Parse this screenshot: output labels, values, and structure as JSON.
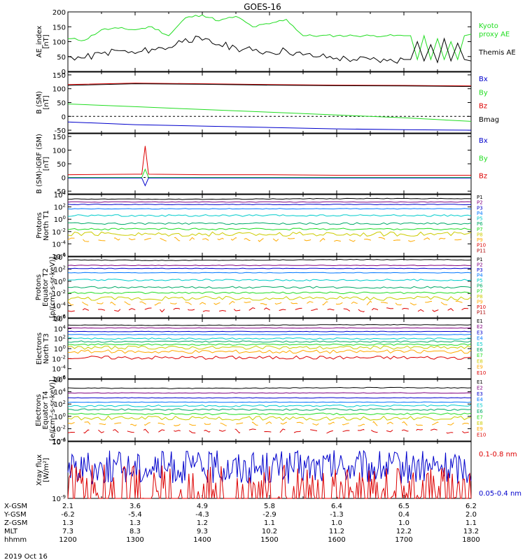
{
  "title": "GOES-16",
  "date_label": "2019 Oct 16",
  "footer": {
    "rows": [
      {
        "label": "X-GSM",
        "values": [
          "2.1",
          "3.6",
          "4.9",
          "5.8",
          "6.4",
          "6.5",
          "6.2"
        ]
      },
      {
        "label": "Y-GSM",
        "values": [
          "-6.2",
          "-5.4",
          "-4.3",
          "-2.9",
          "-1.3",
          "0.4",
          "2.0"
        ]
      },
      {
        "label": "Z-GSM",
        "values": [
          "1.3",
          "1.3",
          "1.2",
          "1.1",
          "1.0",
          "1.0",
          "1.1"
        ]
      },
      {
        "label": "MLT",
        "values": [
          "7.3",
          "8.3",
          "9.3",
          "10.2",
          "11.2",
          "12.2",
          "13.2"
        ]
      },
      {
        "label": "hhmm",
        "values": [
          "1200",
          "1300",
          "1400",
          "1500",
          "1600",
          "1700",
          "1800"
        ]
      }
    ]
  },
  "colors": {
    "black": "#000000",
    "green": "#22dd22",
    "blue": "#0000cc",
    "red": "#dd0000"
  },
  "chart_data": [
    {
      "type": "line",
      "ylabel_lines": [
        "AE_index",
        "[nT]"
      ],
      "ylim": [
        0,
        200
      ],
      "yticks": [
        0,
        50,
        100,
        150,
        200
      ],
      "ytick_labels": [
        "0",
        "50",
        "100",
        "150",
        "200"
      ],
      "x": [
        12.0,
        12.25,
        12.5,
        12.75,
        13.0,
        13.25,
        13.5,
        13.75,
        14.0,
        14.25,
        14.5,
        14.75,
        15.0,
        15.25,
        15.5,
        15.75,
        16.0,
        16.25,
        16.5,
        16.75,
        17.0,
        17.1,
        17.2,
        17.3,
        17.4,
        17.5,
        17.6,
        17.7,
        17.8,
        17.9,
        18.0
      ],
      "series": [
        {
          "name": "Kyoto proxy AE",
          "color": "#22dd22",
          "values": [
            110,
            105,
            140,
            145,
            140,
            150,
            120,
            180,
            190,
            170,
            185,
            150,
            160,
            175,
            120,
            120,
            120,
            120,
            120,
            120,
            120,
            120,
            40,
            120,
            40,
            110,
            40,
            100,
            40,
            120,
            125
          ]
        },
        {
          "name": "Themis AE",
          "color": "#000000",
          "values": [
            50,
            45,
            60,
            70,
            60,
            75,
            80,
            110,
            105,
            90,
            80,
            70,
            65,
            70,
            55,
            50,
            45,
            40,
            40,
            35,
            40,
            40,
            100,
            35,
            90,
            30,
            110,
            35,
            95,
            40,
            35
          ]
        }
      ],
      "legend": [
        {
          "text": "Kyoto",
          "color": "#22dd22"
        },
        {
          "text": "proxy AE",
          "color": "#22dd22"
        },
        {
          "text": "Themis AE",
          "color": "#000000"
        }
      ]
    },
    {
      "type": "line",
      "ylabel_lines": [
        "B (SM)",
        "[nT]"
      ],
      "ylim": [
        -60,
        160
      ],
      "yticks": [
        -50,
        0,
        50,
        100,
        150
      ],
      "ytick_labels": [
        "-50",
        "0",
        "50",
        "100",
        "150"
      ],
      "x": [
        12.0,
        13.0,
        14.0,
        15.0,
        16.0,
        17.0,
        18.0
      ],
      "series": [
        {
          "name": "Bz",
          "color": "#dd0000",
          "values": [
            115,
            120,
            118,
            115,
            113,
            112,
            110
          ]
        },
        {
          "name": "Bmag",
          "color": "#000000",
          "values": [
            112,
            118,
            116,
            113,
            111,
            110,
            108
          ]
        },
        {
          "name": "By",
          "color": "#22dd22",
          "values": [
            45,
            35,
            25,
            15,
            5,
            -5,
            -18
          ]
        },
        {
          "name": "Bx",
          "color": "#0000cc",
          "values": [
            -20,
            -30,
            -35,
            -40,
            -45,
            -48,
            -50
          ]
        }
      ],
      "legend": [
        {
          "text": "Bx",
          "color": "#0000cc"
        },
        {
          "text": "By",
          "color": "#22dd22"
        },
        {
          "text": "Bz",
          "color": "#dd0000"
        },
        {
          "text": "Bmag",
          "color": "#000000"
        }
      ]
    },
    {
      "type": "line",
      "ylabel_lines": [
        "B (SM)-IGRF (SM)",
        "[nT]"
      ],
      "ylim": [
        -60,
        160
      ],
      "yticks": [
        -50,
        0,
        50,
        100,
        150
      ],
      "ytick_labels": [
        "-50",
        "0",
        "50",
        "100",
        "150"
      ],
      "x": [
        12.0,
        13.0,
        13.1,
        13.15,
        13.2,
        14.0,
        15.0,
        16.0,
        17.0,
        18.0
      ],
      "series": [
        {
          "name": "Bz",
          "color": "#dd0000",
          "values": [
            10,
            12,
            12,
            115,
            12,
            10,
            10,
            8,
            8,
            8
          ]
        },
        {
          "name": "By",
          "color": "#22dd22",
          "values": [
            0,
            0,
            0,
            30,
            0,
            0,
            0,
            0,
            0,
            0
          ]
        },
        {
          "name": "Bx",
          "color": "#0000cc",
          "values": [
            -2,
            -2,
            -2,
            -30,
            -2,
            -2,
            -2,
            -2,
            -2,
            -2
          ]
        }
      ],
      "legend": [
        {
          "text": "Bx",
          "color": "#0000cc"
        },
        {
          "text": "By",
          "color": "#22dd22"
        },
        {
          "text": "Bz",
          "color": "#dd0000"
        }
      ]
    },
    {
      "type": "line",
      "ylabel_lines": [
        "Protons",
        "North T1"
      ],
      "scale": "log",
      "ylim_exp": [
        -6,
        4
      ],
      "ytick_exps": [
        -6,
        -4,
        -2,
        0,
        2,
        4
      ],
      "channels": [
        "P1",
        "P2",
        "P3",
        "P4",
        "P5",
        "P6",
        "P7",
        "P8",
        "P9",
        "P10",
        "P11"
      ],
      "channel_colors": [
        "#000000",
        "#800080",
        "#0000cc",
        "#0077ff",
        "#00cccc",
        "#00aa66",
        "#22dd22",
        "#cccc00",
        "#ffaa00",
        "#dd0000",
        "#aa0000"
      ],
      "levels_exp": [
        3.3,
        2.8,
        2.4,
        1.7,
        0.6,
        -0.7,
        -1.6,
        -2.4,
        -3.3,
        null,
        null
      ]
    },
    {
      "type": "line",
      "ylabel_lines": [
        "Protons",
        "Equator T2",
        "[p/(cm²-s-sr-keV)]"
      ],
      "scale": "log",
      "ylim_exp": [
        -6,
        4
      ],
      "ytick_exps": [
        -6,
        -4,
        -2,
        0,
        2,
        4
      ],
      "channels": [
        "P1",
        "P2",
        "P3",
        "P4",
        "P5",
        "P6",
        "P7",
        "P8",
        "P9",
        "P10",
        "P11"
      ],
      "channel_colors": [
        "#000000",
        "#800080",
        "#0000cc",
        "#0077ff",
        "#00cccc",
        "#00aa66",
        "#22dd22",
        "#cccc00",
        "#ffaa00",
        "#dd0000",
        "#aa0000"
      ],
      "levels_exp": [
        3.5,
        2.6,
        2.1,
        1.4,
        0.2,
        -1.0,
        -1.9,
        -2.8,
        -3.6,
        -4.7,
        null
      ]
    },
    {
      "type": "line",
      "ylabel_lines": [
        "Electrons",
        "North T3"
      ],
      "scale": "log",
      "ylim_exp": [
        -6,
        6
      ],
      "ytick_exps": [
        -6,
        -4,
        -2,
        0,
        2,
        4,
        6
      ],
      "channels": [
        "E1",
        "E2",
        "E3",
        "E4",
        "E5",
        "E6",
        "E7",
        "E8",
        "E9",
        "E10"
      ],
      "channel_colors": [
        "#000000",
        "#800080",
        "#0000cc",
        "#0077ff",
        "#00cccc",
        "#00aa66",
        "#22dd22",
        "#cccc00",
        "#ffaa00",
        "#dd0000"
      ],
      "levels_exp": [
        4.7,
        4.1,
        3.4,
        2.8,
        2.0,
        1.4,
        0.8,
        0.2,
        -0.6,
        -1.8
      ]
    },
    {
      "type": "line",
      "ylabel_lines": [
        "Electrons",
        "Equator T4",
        "[e/(cm²-s-sr-keV)]"
      ],
      "scale": "log",
      "ylim_exp": [
        -4,
        6
      ],
      "ytick_exps": [
        -4,
        -2,
        0,
        2,
        4,
        6
      ],
      "channels": [
        "E1",
        "E2",
        "E3",
        "E4",
        "E5",
        "E6",
        "E7",
        "E8",
        "E9",
        "E10"
      ],
      "channel_colors": [
        "#000000",
        "#800080",
        "#0000cc",
        "#0077ff",
        "#00cccc",
        "#00aa66",
        "#22dd22",
        "#cccc00",
        "#ffaa00",
        "#dd0000"
      ],
      "levels_exp": [
        4.6,
        3.8,
        3.0,
        2.3,
        1.7,
        1.1,
        0.4,
        -0.3,
        -1.2,
        -2.4
      ]
    },
    {
      "type": "line",
      "ylabel_lines": [
        "Xray flux",
        "[W/m²]"
      ],
      "scale": "log",
      "ylim_exp": [
        -9,
        -8
      ],
      "ytick_exps": [
        -9,
        -8
      ],
      "series": [
        {
          "name": "0.1-0.8 nm",
          "color": "#dd0000"
        },
        {
          "name": "0.05-0.4 nm",
          "color": "#0000cc"
        }
      ],
      "legend": [
        {
          "text": "0.1-0.8 nm",
          "color": "#dd0000"
        },
        {
          "text": "0.05-0.4 nm",
          "color": "#0000cc"
        }
      ]
    }
  ]
}
